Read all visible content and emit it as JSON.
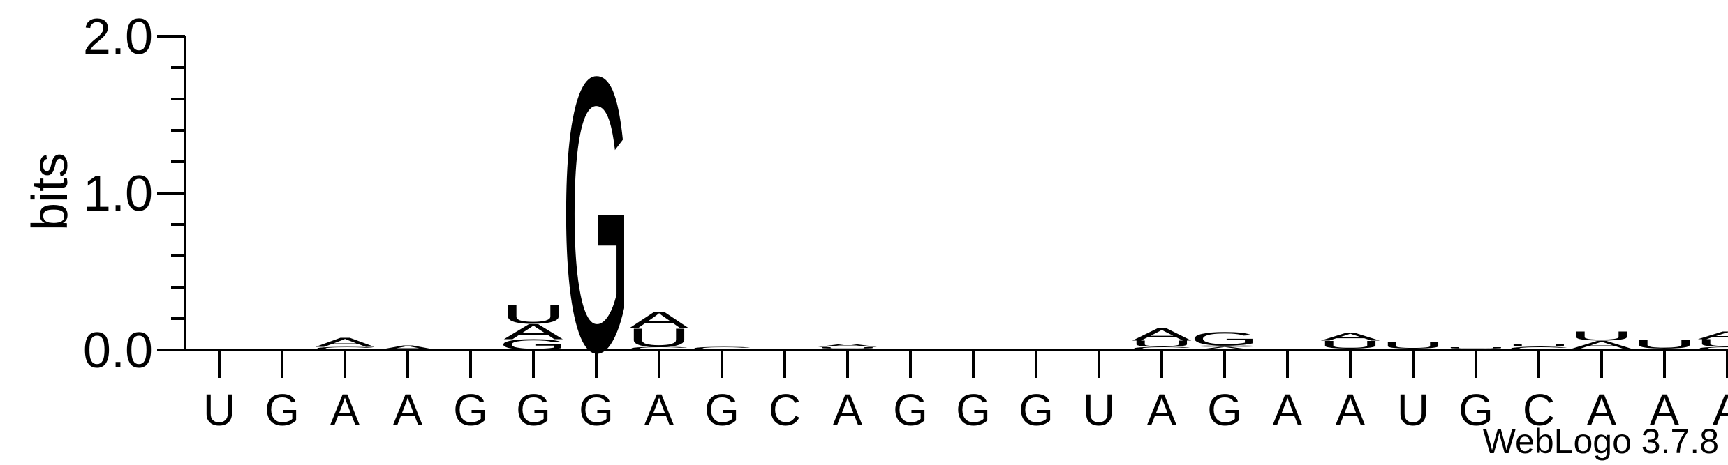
{
  "chart_data": {
    "type": "sequence-logo",
    "title": "",
    "ylabel": "bits",
    "xlabel": "",
    "ylim": [
      0,
      2.0
    ],
    "yticks": [
      {
        "value": 0.0,
        "label": "0.0"
      },
      {
        "value": 1.0,
        "label": "1.0"
      },
      {
        "value": 2.0,
        "label": "2.0"
      }
    ],
    "footer": "WebLogo 3.7.8",
    "colors": {
      "A": "#ff9a00",
      "U": "#ff9a00",
      "G": "#0000ff",
      "C": "#0000ff",
      "axis": "#000000"
    },
    "positions": [
      {
        "label": "U",
        "stack": [
          {
            "letter": "A",
            "height": 0.01
          }
        ]
      },
      {
        "label": "G",
        "stack": []
      },
      {
        "label": "A",
        "stack": [
          {
            "letter": "C",
            "height": 0.02
          },
          {
            "letter": "A",
            "height": 0.06
          }
        ]
      },
      {
        "label": "A",
        "stack": [
          {
            "letter": "A",
            "height": 0.03
          }
        ]
      },
      {
        "label": "G",
        "stack": []
      },
      {
        "label": "G",
        "stack": [
          {
            "letter": "G",
            "height": 0.07
          },
          {
            "letter": "A",
            "height": 0.1
          },
          {
            "letter": "U",
            "height": 0.12
          }
        ]
      },
      {
        "label": "G",
        "stack": [
          {
            "letter": "G",
            "height": 1.8
          }
        ]
      },
      {
        "label": "A",
        "stack": [
          {
            "letter": "C",
            "height": 0.02
          },
          {
            "letter": "U",
            "height": 0.12
          },
          {
            "letter": "A",
            "height": 0.11
          }
        ]
      },
      {
        "label": "G",
        "stack": [
          {
            "letter": "C",
            "height": 0.02
          }
        ]
      },
      {
        "label": "C",
        "stack": []
      },
      {
        "label": "A",
        "stack": [
          {
            "letter": "C",
            "height": 0.01
          },
          {
            "letter": "U",
            "height": 0.01
          },
          {
            "letter": "A",
            "height": 0.02
          }
        ]
      },
      {
        "label": "G",
        "stack": [
          {
            "letter": "C",
            "height": 0.01
          }
        ]
      },
      {
        "label": "G",
        "stack": [
          {
            "letter": "C",
            "height": 0.01
          }
        ]
      },
      {
        "label": "G",
        "stack": []
      },
      {
        "label": "U",
        "stack": []
      },
      {
        "label": "A",
        "stack": [
          {
            "letter": "C",
            "height": 0.02
          },
          {
            "letter": "U",
            "height": 0.04
          },
          {
            "letter": "A",
            "height": 0.08
          }
        ]
      },
      {
        "label": "G",
        "stack": [
          {
            "letter": "A",
            "height": 0.02
          },
          {
            "letter": "C",
            "height": 0.01
          },
          {
            "letter": "G",
            "height": 0.09
          }
        ]
      },
      {
        "label": "A",
        "stack": []
      },
      {
        "label": "A",
        "stack": [
          {
            "letter": "C",
            "height": 0.01
          },
          {
            "letter": "U",
            "height": 0.05
          },
          {
            "letter": "A",
            "height": 0.05
          }
        ]
      },
      {
        "label": "U",
        "stack": [
          {
            "letter": "C",
            "height": 0.01
          },
          {
            "letter": "U",
            "height": 0.04
          }
        ]
      },
      {
        "label": "G",
        "stack": [
          {
            "letter": "C",
            "height": 0.01
          },
          {
            "letter": "U",
            "height": 0.01
          }
        ]
      },
      {
        "label": "C",
        "stack": [
          {
            "letter": "C",
            "height": 0.02
          },
          {
            "letter": "U",
            "height": 0.02
          }
        ]
      },
      {
        "label": "A",
        "stack": [
          {
            "letter": "C",
            "height": 0.01
          },
          {
            "letter": "A",
            "height": 0.05
          },
          {
            "letter": "U",
            "height": 0.06
          }
        ]
      },
      {
        "label": "A",
        "stack": [
          {
            "letter": "C",
            "height": 0.01
          },
          {
            "letter": "U",
            "height": 0.06
          }
        ]
      },
      {
        "label": "A",
        "stack": [
          {
            "letter": "C",
            "height": 0.02
          },
          {
            "letter": "U",
            "height": 0.05
          },
          {
            "letter": "A",
            "height": 0.05
          }
        ]
      }
    ]
  }
}
